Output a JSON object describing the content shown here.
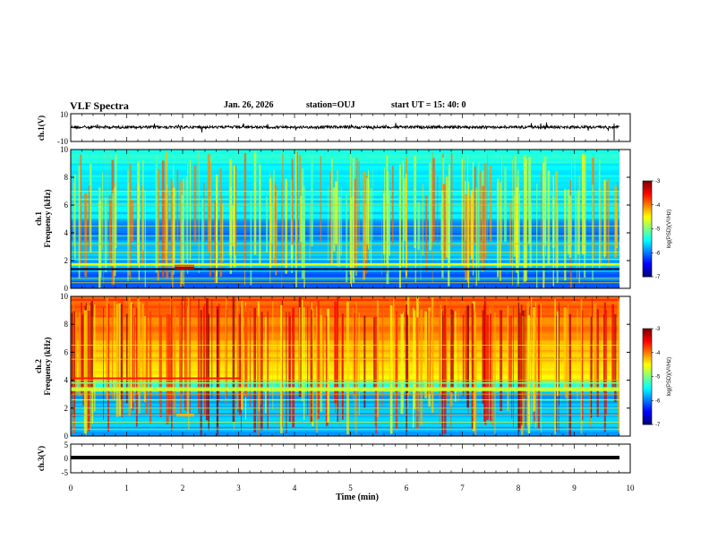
{
  "header": {
    "title": "VLF Spectra",
    "date": "Jan. 26, 2026",
    "station": "station=OUJ",
    "start": "start  UT  =  15: 40: 0"
  },
  "colors": {
    "low": "#000080",
    "mid": "#00ff00",
    "high": "#ff0000",
    "axis": "#000000"
  },
  "chart_data": [
    {
      "type": "line",
      "panel": "waveform-ch1",
      "ylabel": "ch.1(V)",
      "yticks": [
        "10",
        "-10"
      ],
      "ylim": [
        -10,
        10
      ],
      "x_range_min": [
        0,
        10
      ],
      "approx_level_v": -0.5
    },
    {
      "type": "heatmap",
      "panel": "spectrogram-ch1",
      "ylabel": "ch.1\nFrequency (kHz)",
      "ylim_khz": [
        0,
        10
      ],
      "yticks": [
        "0",
        "2",
        "4",
        "6",
        "8",
        "10"
      ],
      "xlim_min": [
        0,
        9.8
      ],
      "colorbar": {
        "label": "log(PSD)(V²/Hz)",
        "range": [
          -7,
          -3
        ],
        "ticks": [
          "-3",
          "-4",
          "-5",
          "-6",
          "-7"
        ]
      }
    },
    {
      "type": "heatmap",
      "panel": "spectrogram-ch2",
      "ylabel": "ch.2\nFrequency (kHz)",
      "ylim_khz": [
        0,
        10
      ],
      "yticks": [
        "0",
        "2",
        "4",
        "6",
        "8",
        "10"
      ],
      "xlim_min": [
        0,
        9.8
      ],
      "colorbar": {
        "label": "log(PSD)(V²/Hz)",
        "range": [
          -7,
          -3
        ],
        "ticks": [
          "-3",
          "-4",
          "-5",
          "-6",
          "-7"
        ]
      }
    },
    {
      "type": "line",
      "panel": "waveform-ch3",
      "ylabel": "ch.3(V)",
      "yticks": [
        "5",
        "0",
        "-5"
      ],
      "ylim": [
        -5,
        5
      ],
      "approx_level_v": 0
    }
  ],
  "xaxis": {
    "label": "Time  (min)",
    "ticks": [
      "0",
      "1",
      "2",
      "3",
      "4",
      "5",
      "6",
      "7",
      "8",
      "9",
      "10"
    ],
    "range": [
      0,
      10
    ]
  }
}
